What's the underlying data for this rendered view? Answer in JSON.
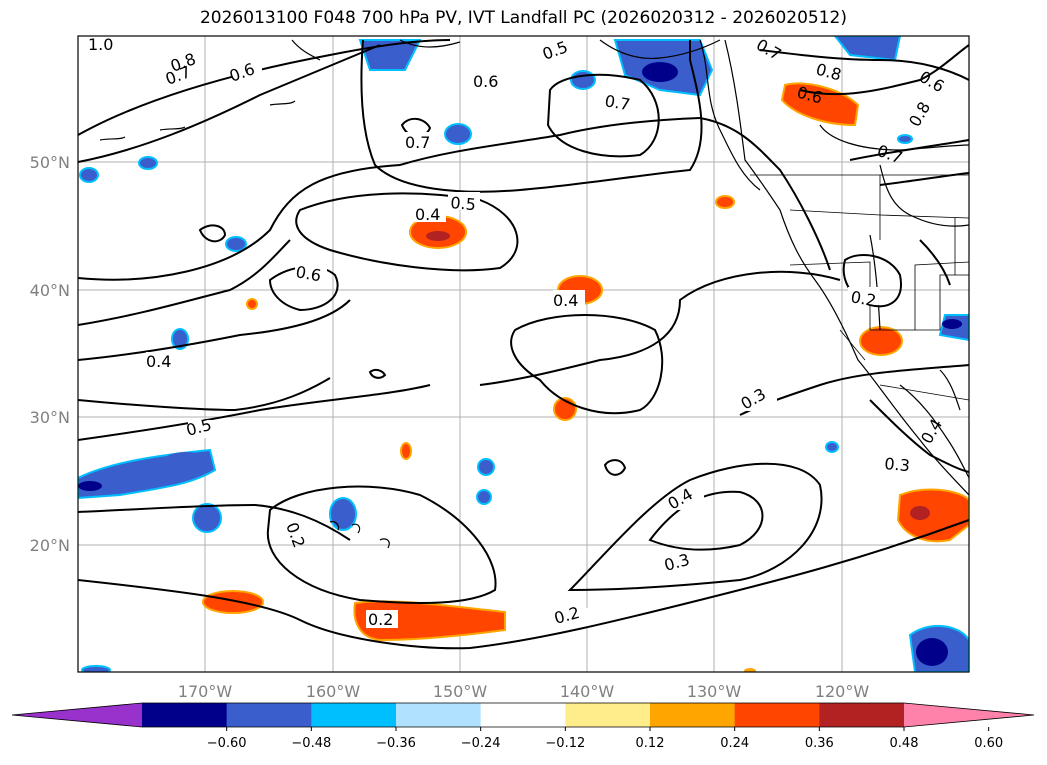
{
  "title": "2026013100 F048 700 hPa PV, IVT Landfall PC (2026020312 - 2026020512)",
  "lat_ticks": [
    "50°N",
    "40°N",
    "30°N",
    "20°N"
  ],
  "lon_ticks": [
    "170°W",
    "160°W",
    "150°W",
    "140°W",
    "130°W",
    "120°W"
  ],
  "contour_labels": [
    "1.0",
    "0.8",
    "0.7",
    "0.6",
    "0.5",
    "0.6",
    "0.7",
    "0.7",
    "0.7",
    "0.8",
    "0.6",
    "0.6",
    "0.8",
    "0.7",
    "0.5",
    "0.4",
    "0.6",
    "0.4",
    "0.4",
    "0.5",
    "0.2",
    "0.2",
    "0.3",
    "0.3",
    "0.4",
    "0.3",
    "0.2",
    "0.2",
    "0.4"
  ],
  "colorbar": {
    "ticks": [
      "−0.60",
      "−0.48",
      "−0.36",
      "−0.24",
      "−0.12",
      "0.12",
      "0.24",
      "0.36",
      "0.48",
      "0.60"
    ],
    "colors": [
      "#9932cc",
      "#00008b",
      "#3a5fcd",
      "#00bfff",
      "#b0e2ff",
      "#ffffff",
      "#ffec8b",
      "#ffa500",
      "#ff4500",
      "#b22222",
      "#ff82ab"
    ]
  },
  "colors": {
    "land_coast": "#000000",
    "grid": "#b0b0b0",
    "neg_dark": "#00008b",
    "neg_mid": "#3a5fcd",
    "neg_light": "#00bfff",
    "pos_light": "#ffa500",
    "pos_mid": "#ff4500",
    "pos_dark": "#b22222"
  }
}
